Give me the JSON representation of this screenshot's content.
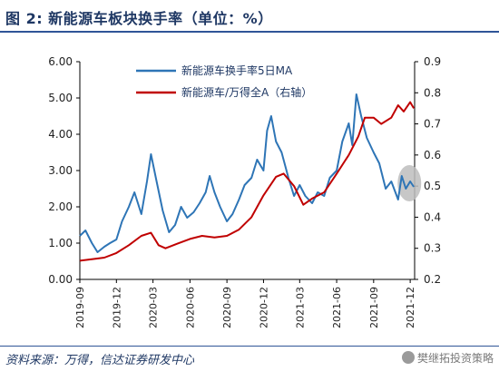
{
  "header": {
    "title": "图 2:  新能源车板块换手率（单位：%）"
  },
  "footer": {
    "source": "资料来源：万得，信达证券研发中心",
    "watermark": "樊继拓投资策略"
  },
  "chart_data": {
    "type": "line",
    "title": "图 2:  新能源车板块换手率（单位：%）",
    "xlabel": "",
    "ylabel": "",
    "ylim": [
      0,
      6
    ],
    "y2lim": [
      0.2,
      0.9
    ],
    "y_ticks": [
      "0.00",
      "1.00",
      "2.00",
      "3.00",
      "4.00",
      "5.00",
      "6.00"
    ],
    "y2_ticks": [
      "0.2",
      "0.3",
      "0.4",
      "0.5",
      "0.6",
      "0.7",
      "0.8",
      "0.9"
    ],
    "x_ticks": [
      "2019-09",
      "2019-12",
      "2020-03",
      "2020-06",
      "2020-09",
      "2020-12",
      "2021-03",
      "2021-06",
      "2021-09",
      "2021-12"
    ],
    "grid": false,
    "legend_position": "top-center",
    "annotation": "gray ellipse highlighting the latest turnover values",
    "series": [
      {
        "name": "新能源车换手率5日MA",
        "axis": "left",
        "color": "#2e75b6",
        "points": [
          [
            "2019-09-01",
            1.2
          ],
          [
            "2019-09-15",
            1.35
          ],
          [
            "2019-10-01",
            1.0
          ],
          [
            "2019-10-15",
            0.75
          ],
          [
            "2019-11-01",
            0.9
          ],
          [
            "2019-11-15",
            1.0
          ],
          [
            "2019-12-01",
            1.1
          ],
          [
            "2019-12-15",
            1.6
          ],
          [
            "2020-01-01",
            2.0
          ],
          [
            "2020-01-15",
            2.4
          ],
          [
            "2020-02-01",
            1.8
          ],
          [
            "2020-02-15",
            2.7
          ],
          [
            "2020-02-25",
            3.45
          ],
          [
            "2020-03-10",
            2.7
          ],
          [
            "2020-03-25",
            1.9
          ],
          [
            "2020-04-10",
            1.3
          ],
          [
            "2020-04-25",
            1.5
          ],
          [
            "2020-05-10",
            2.0
          ],
          [
            "2020-05-25",
            1.7
          ],
          [
            "2020-06-10",
            1.85
          ],
          [
            "2020-06-25",
            2.1
          ],
          [
            "2020-07-10",
            2.4
          ],
          [
            "2020-07-20",
            2.85
          ],
          [
            "2020-08-01",
            2.4
          ],
          [
            "2020-08-15",
            2.0
          ],
          [
            "2020-09-01",
            1.6
          ],
          [
            "2020-09-15",
            1.8
          ],
          [
            "2020-10-01",
            2.2
          ],
          [
            "2020-10-15",
            2.6
          ],
          [
            "2020-11-01",
            2.8
          ],
          [
            "2020-11-15",
            3.3
          ],
          [
            "2020-12-01",
            3.0
          ],
          [
            "2020-12-10",
            4.1
          ],
          [
            "2020-12-20",
            4.5
          ],
          [
            "2021-01-01",
            3.8
          ],
          [
            "2021-01-15",
            3.5
          ],
          [
            "2021-02-01",
            2.8
          ],
          [
            "2021-02-15",
            2.3
          ],
          [
            "2021-03-01",
            2.6
          ],
          [
            "2021-03-15",
            2.3
          ],
          [
            "2021-04-01",
            2.1
          ],
          [
            "2021-04-15",
            2.4
          ],
          [
            "2021-05-01",
            2.3
          ],
          [
            "2021-05-15",
            2.8
          ],
          [
            "2021-06-01",
            3.0
          ],
          [
            "2021-06-15",
            3.8
          ],
          [
            "2021-07-01",
            4.3
          ],
          [
            "2021-07-10",
            3.7
          ],
          [
            "2021-07-20",
            5.1
          ],
          [
            "2021-08-01",
            4.5
          ],
          [
            "2021-08-15",
            3.9
          ],
          [
            "2021-09-01",
            3.5
          ],
          [
            "2021-09-15",
            3.2
          ],
          [
            "2021-10-01",
            2.5
          ],
          [
            "2021-10-15",
            2.7
          ],
          [
            "2021-11-01",
            2.2
          ],
          [
            "2021-11-10",
            2.85
          ],
          [
            "2021-11-20",
            2.5
          ],
          [
            "2021-12-01",
            2.7
          ],
          [
            "2021-12-10",
            2.55
          ]
        ]
      },
      {
        "name": "新能源车/万得全A（右轴）",
        "axis": "right",
        "color": "#c00000",
        "points": [
          [
            "2019-09-01",
            0.26
          ],
          [
            "2019-10-01",
            0.265
          ],
          [
            "2019-11-01",
            0.27
          ],
          [
            "2019-12-01",
            0.285
          ],
          [
            "2020-01-01",
            0.31
          ],
          [
            "2020-02-01",
            0.34
          ],
          [
            "2020-02-25",
            0.35
          ],
          [
            "2020-03-15",
            0.31
          ],
          [
            "2020-04-01",
            0.3
          ],
          [
            "2020-05-01",
            0.315
          ],
          [
            "2020-06-01",
            0.33
          ],
          [
            "2020-07-01",
            0.34
          ],
          [
            "2020-08-01",
            0.335
          ],
          [
            "2020-09-01",
            0.34
          ],
          [
            "2020-10-01",
            0.36
          ],
          [
            "2020-11-01",
            0.4
          ],
          [
            "2020-12-01",
            0.47
          ],
          [
            "2021-01-01",
            0.53
          ],
          [
            "2021-01-20",
            0.54
          ],
          [
            "2021-02-15",
            0.5
          ],
          [
            "2021-03-10",
            0.44
          ],
          [
            "2021-04-01",
            0.46
          ],
          [
            "2021-05-01",
            0.48
          ],
          [
            "2021-06-01",
            0.54
          ],
          [
            "2021-07-01",
            0.6
          ],
          [
            "2021-07-25",
            0.66
          ],
          [
            "2021-08-10",
            0.72
          ],
          [
            "2021-09-01",
            0.72
          ],
          [
            "2021-09-20",
            0.7
          ],
          [
            "2021-10-15",
            0.72
          ],
          [
            "2021-11-01",
            0.76
          ],
          [
            "2021-11-15",
            0.74
          ],
          [
            "2021-12-01",
            0.77
          ],
          [
            "2021-12-10",
            0.75
          ]
        ]
      }
    ]
  }
}
